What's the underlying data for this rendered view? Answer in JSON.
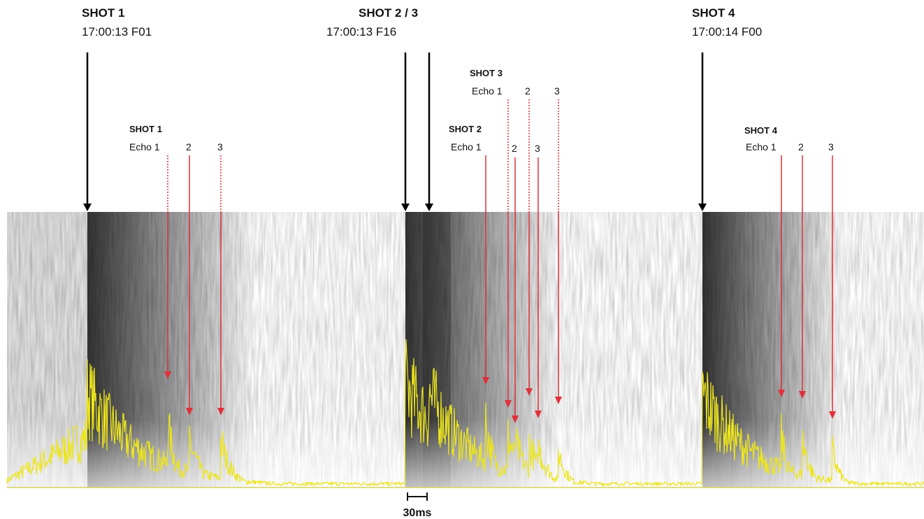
{
  "shots": [
    {
      "title": "SHOT 1",
      "timecode": "17:00:13 F01"
    },
    {
      "title": "SHOT 2 / 3",
      "timecode": "17:00:13 F16"
    },
    {
      "title": "SHOT 4",
      "timecode": "17:00:14 F00"
    }
  ],
  "echo_groups": [
    {
      "title": "SHOT 1",
      "labels": [
        "Echo 1",
        "2",
        "3"
      ]
    },
    {
      "title": "SHOT 3",
      "labels": [
        "Echo 1",
        "2",
        "3"
      ]
    },
    {
      "title": "SHOT 2",
      "labels": [
        "Echo 1",
        "2",
        "3"
      ]
    },
    {
      "title": "SHOT 4",
      "labels": [
        "Echo 1",
        "2",
        "3"
      ]
    }
  ],
  "scale": {
    "label": "30ms"
  }
}
